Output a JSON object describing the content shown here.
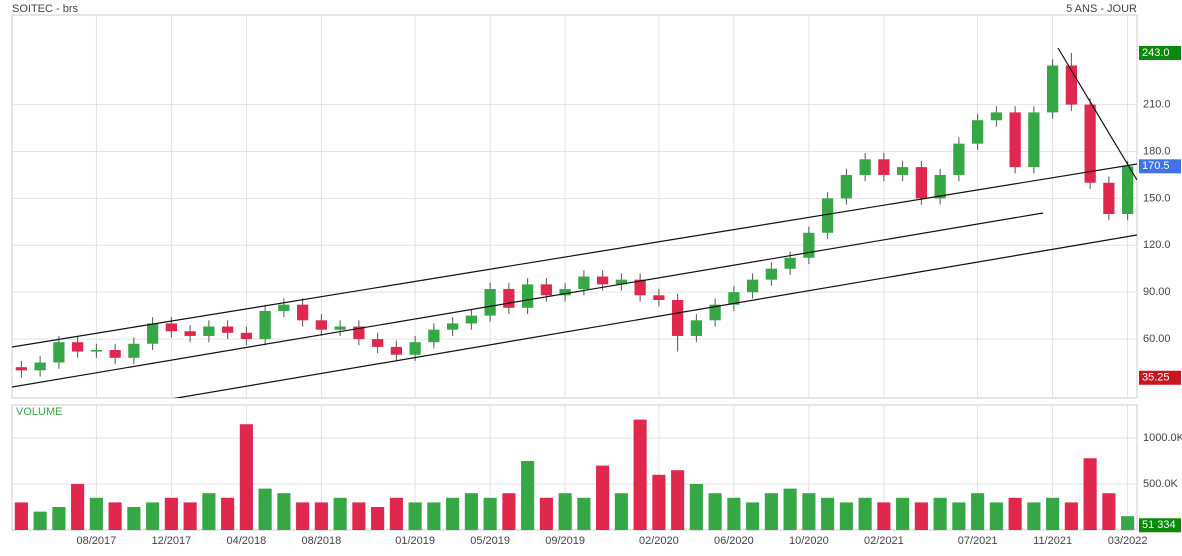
{
  "chart_data": {
    "type": "candlestick",
    "title": "SOITEC - brs",
    "subtitle": "5 ANS - JOUR",
    "categories": [
      null,
      null,
      null,
      null,
      "08/2017",
      null,
      null,
      null,
      "12/2017",
      null,
      null,
      null,
      "04/2018",
      null,
      null,
      null,
      "08/2018",
      null,
      null,
      null,
      null,
      "01/2019",
      null,
      null,
      null,
      "05/2019",
      null,
      null,
      null,
      "09/2019",
      null,
      null,
      null,
      null,
      "02/2020",
      null,
      null,
      null,
      "06/2020",
      null,
      null,
      null,
      "10/2020",
      null,
      null,
      null,
      "02/2021",
      null,
      null,
      null,
      null,
      "07/2021",
      null,
      null,
      null,
      "11/2021",
      null,
      null,
      null,
      "03/2022"
    ],
    "open": [
      42,
      40,
      45,
      58,
      52,
      53,
      48,
      57,
      70,
      65,
      62,
      68,
      64,
      60,
      78,
      82,
      72,
      66,
      68,
      60,
      55,
      50,
      58,
      66,
      70,
      75,
      92,
      80,
      95,
      88,
      92,
      100,
      95,
      98,
      88,
      85,
      62,
      72,
      82,
      90,
      98,
      105,
      112,
      128,
      150,
      165,
      175,
      165,
      170,
      150,
      165,
      185,
      200,
      205,
      170,
      205,
      235,
      210,
      160,
      140
    ],
    "high": [
      46,
      49,
      62,
      62,
      57,
      57,
      61,
      74,
      74,
      69,
      72,
      72,
      68,
      82,
      86,
      86,
      76,
      72,
      72,
      64,
      59,
      62,
      70,
      74,
      79,
      96,
      96,
      99,
      99,
      96,
      104,
      104,
      102,
      102,
      92,
      89,
      76,
      86,
      94,
      102,
      109,
      116,
      132,
      154,
      169,
      179,
      179,
      174,
      174,
      169,
      189,
      204,
      209,
      209,
      209,
      239,
      243,
      214,
      164,
      174
    ],
    "low": [
      35.25,
      36,
      41,
      48,
      48,
      44,
      44,
      53,
      61,
      58,
      58,
      60,
      56,
      56,
      74,
      68,
      62,
      62,
      56,
      51,
      46,
      46,
      54,
      62,
      66,
      71,
      76,
      76,
      84,
      84,
      88,
      91,
      91,
      84,
      81,
      52,
      58,
      68,
      78,
      86,
      94,
      101,
      108,
      124,
      146,
      161,
      161,
      161,
      146,
      146,
      161,
      181,
      196,
      166,
      166,
      201,
      206,
      156,
      136,
      136
    ],
    "close": [
      40,
      45,
      58,
      52,
      53,
      48,
      57,
      70,
      65,
      62,
      68,
      64,
      60,
      78,
      82,
      72,
      66,
      68,
      60,
      55,
      50,
      58,
      66,
      70,
      75,
      92,
      80,
      95,
      88,
      92,
      100,
      95,
      98,
      88,
      85,
      62,
      72,
      82,
      90,
      98,
      105,
      112,
      128,
      150,
      165,
      175,
      165,
      170,
      150,
      165,
      185,
      200,
      205,
      170,
      205,
      235,
      210,
      160,
      140,
      170.5
    ],
    "up_color": "#35a845",
    "down_color": "#e0284f",
    "ylim": [
      22.3,
      267.3
    ],
    "yticks": [
      {
        "value": 60,
        "label": "60.00"
      },
      {
        "value": 90,
        "label": "90.00"
      },
      {
        "value": 120,
        "label": "120.0"
      },
      {
        "value": 150,
        "label": "150.0"
      },
      {
        "value": 180,
        "label": "180.0"
      },
      {
        "value": 210,
        "label": "210.0"
      }
    ],
    "price_badges": [
      {
        "value": 243,
        "label": "243.0",
        "color": "#0a8a0a"
      },
      {
        "value": 170.5,
        "label": "170.5",
        "color": "#3f73e6"
      },
      {
        "value": 35.25,
        "label": "35.25",
        "color": "#c8161d"
      }
    ],
    "volume": {
      "title": "VOLUME",
      "values": [
        300000,
        200000,
        250000,
        500000,
        350000,
        300000,
        250000,
        300000,
        350000,
        300000,
        400000,
        350000,
        1150000,
        450000,
        400000,
        300000,
        300000,
        350000,
        300000,
        250000,
        350000,
        300000,
        300000,
        350000,
        400000,
        350000,
        400000,
        750000,
        350000,
        400000,
        350000,
        700000,
        400000,
        1200000,
        600000,
        650000,
        500000,
        400000,
        350000,
        300000,
        400000,
        450000,
        400000,
        350000,
        300000,
        350000,
        300000,
        350000,
        300000,
        350000,
        300000,
        400000,
        300000,
        350000,
        300000,
        350000,
        300000,
        780000,
        400000,
        150000
      ],
      "ylim": [
        0,
        1359000
      ],
      "yticks": [
        {
          "value": 500000,
          "label": "500.0K"
        },
        {
          "value": 1000000,
          "label": "1000.0K"
        }
      ],
      "badge": {
        "value": 51334,
        "label": "51 334",
        "color": "#0a8a0a"
      }
    },
    "grid": true
  }
}
